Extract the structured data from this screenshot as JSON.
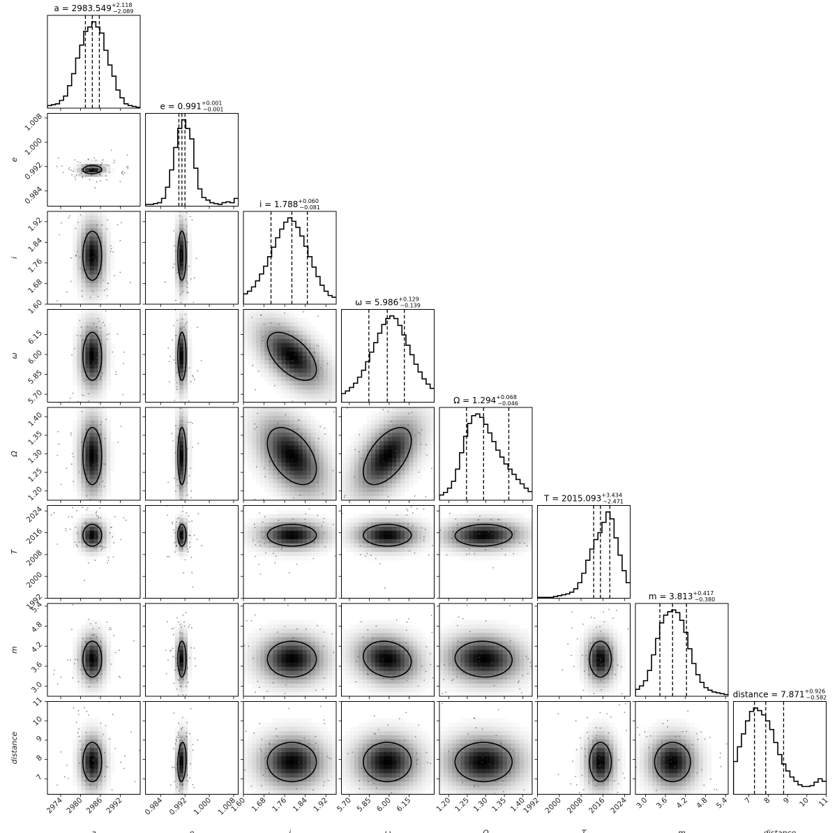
{
  "chart_data": {
    "type": "corner",
    "parameters": [
      {
        "symbol": "a",
        "axis_label": "a",
        "median": 2983.549,
        "err_plus": 2.118,
        "err_minus": 2.089,
        "title_main": "a = 2983.549",
        "title_sup": "+2.118",
        "title_sub": "−2.089",
        "range": [
          2970,
          2998
        ],
        "ticks": [
          2974,
          2980,
          2986,
          2992
        ],
        "tick_labels": [
          "2974",
          "2980",
          "2986",
          "2992"
        ],
        "quantiles": [
          2981.46,
          2983.549,
          2985.667
        ],
        "hist": [
          0.03,
          0.04,
          0.05,
          0.09,
          0.14,
          0.26,
          0.4,
          0.58,
          0.73,
          0.89,
          0.94,
          1.0,
          0.94,
          0.87,
          0.67,
          0.5,
          0.37,
          0.21,
          0.12,
          0.05,
          0.03,
          0.02,
          0.01
        ]
      },
      {
        "symbol": "e",
        "axis_label": "e",
        "median": 0.991,
        "err_plus": 0.001,
        "err_minus": 0.001,
        "title_main": "e = 0.991",
        "title_sup": "+0.001",
        "title_sub": "−0.001",
        "range": [
          0.979,
          1.0095
        ],
        "ticks": [
          0.984,
          0.992,
          1.0,
          1.008
        ],
        "tick_labels": [
          "0.984",
          "0.992",
          "1.000",
          "1.008"
        ],
        "quantiles": [
          0.99,
          0.991,
          0.992
        ],
        "hist": [
          0.02,
          0.02,
          0.03,
          0.04,
          0.09,
          0.22,
          0.42,
          0.68,
          0.9,
          1.0,
          0.9,
          0.78,
          0.44,
          0.2,
          0.1,
          0.07,
          0.04,
          0.03,
          0.02,
          0.04,
          0.05,
          0.04,
          0.09
        ]
      },
      {
        "symbol": "i",
        "axis_label": "i",
        "median": 1.788,
        "err_plus": 0.06,
        "err_minus": 0.081,
        "title_main": "i = 1.788",
        "title_sup": "+0.060",
        "title_sub": "−0.081",
        "range": [
          1.6,
          1.96
        ],
        "ticks": [
          1.6,
          1.68,
          1.76,
          1.84,
          1.92
        ],
        "tick_labels": [
          "1.60",
          "1.68",
          "1.76",
          "1.84",
          "1.92"
        ],
        "quantiles": [
          1.707,
          1.788,
          1.848
        ],
        "hist": [
          0.12,
          0.15,
          0.2,
          0.27,
          0.35,
          0.44,
          0.55,
          0.66,
          0.77,
          0.87,
          0.95,
          1.0,
          0.96,
          0.89,
          0.79,
          0.67,
          0.55,
          0.43,
          0.32,
          0.22,
          0.15,
          0.1,
          0.08
        ]
      },
      {
        "symbol": "ω",
        "axis_label": "ω",
        "median": 5.986,
        "err_plus": 0.129,
        "err_minus": 0.139,
        "title_main": "ω = 5.986",
        "title_sup": "+0.129",
        "title_sub": "−0.139",
        "range": [
          5.64,
          6.34
        ],
        "ticks": [
          5.7,
          5.85,
          6.0,
          6.15
        ],
        "tick_labels": [
          "5.70",
          "5.85",
          "6.00",
          "6.15"
        ],
        "quantiles": [
          5.847,
          5.986,
          6.115
        ],
        "hist": [
          0.1,
          0.13,
          0.17,
          0.22,
          0.29,
          0.37,
          0.47,
          0.58,
          0.69,
          0.8,
          0.9,
          0.97,
          1.0,
          0.97,
          0.89,
          0.78,
          0.66,
          0.55,
          0.44,
          0.35,
          0.27,
          0.21,
          0.16
        ]
      },
      {
        "symbol": "Ω",
        "axis_label": "Ω",
        "median": 1.294,
        "err_plus": 0.068,
        "err_minus": 0.046,
        "title_main": "Ω = 1.294",
        "title_sup": "+0.068",
        "title_sub": "−0.046",
        "range": [
          1.175,
          1.425
        ],
        "ticks": [
          1.2,
          1.25,
          1.3,
          1.35,
          1.4
        ],
        "tick_labels": [
          "1.20",
          "1.25",
          "1.30",
          "1.35",
          "1.40"
        ],
        "quantiles": [
          1.248,
          1.294,
          1.362
        ],
        "hist": [
          0.06,
          0.09,
          0.14,
          0.22,
          0.36,
          0.55,
          0.74,
          0.89,
          0.98,
          1.0,
          0.96,
          0.88,
          0.78,
          0.68,
          0.58,
          0.5,
          0.42,
          0.36,
          0.3,
          0.24,
          0.19,
          0.14,
          0.1
        ]
      },
      {
        "symbol": "T",
        "axis_label": "T",
        "median": 2015.093,
        "err_plus": 3.434,
        "err_minus": 2.471,
        "title_main": "T = 2015.093",
        "title_sup": "+3.434",
        "title_sub": "−2.471",
        "range": [
          1992,
          2026
        ],
        "ticks": [
          1992,
          2000,
          2008,
          2016,
          2024
        ],
        "tick_labels": [
          "1992",
          "2000",
          "2008",
          "2016",
          "2024"
        ],
        "quantiles": [
          2012.62,
          2015.093,
          2018.527
        ],
        "hist": [
          0.01,
          0.01,
          0.01,
          0.01,
          0.02,
          0.03,
          0.04,
          0.05,
          0.07,
          0.11,
          0.18,
          0.29,
          0.44,
          0.57,
          0.68,
          0.76,
          0.88,
          1.0,
          0.92,
          0.7,
          0.5,
          0.32,
          0.18
        ]
      },
      {
        "symbol": "m",
        "axis_label": "m",
        "median": 3.813,
        "err_plus": 0.417,
        "err_minus": 0.38,
        "title_main": "m = 3.813",
        "title_sup": "+0.417",
        "title_sub": "−0.380",
        "range": [
          2.7,
          5.48
        ],
        "ticks": [
          3.0,
          3.6,
          4.2,
          4.8,
          5.4
        ],
        "tick_labels": [
          "3.0",
          "3.6",
          "4.2",
          "4.8",
          "5.4"
        ],
        "quantiles": [
          3.433,
          3.813,
          4.23
        ],
        "hist": [
          0.08,
          0.12,
          0.18,
          0.3,
          0.48,
          0.67,
          0.85,
          0.94,
          0.98,
          1.0,
          0.97,
          0.88,
          0.74,
          0.55,
          0.38,
          0.25,
          0.16,
          0.1,
          0.07,
          0.05,
          0.04,
          0.03,
          0.02
        ]
      },
      {
        "symbol": "distance",
        "axis_label": "distance",
        "median": 7.871,
        "err_plus": 0.926,
        "err_minus": 0.582,
        "title_main": "distance = 7.871",
        "title_sup": "+0.926",
        "title_sub": "−0.582",
        "range": [
          6.2,
          11.0
        ],
        "ticks": [
          7,
          8,
          9,
          10,
          11
        ],
        "tick_labels": [
          "7",
          "8",
          "9",
          "10",
          "11"
        ],
        "quantiles": [
          7.289,
          7.871,
          8.797
        ],
        "hist": [
          0.38,
          0.55,
          0.7,
          0.85,
          0.96,
          1.0,
          0.97,
          0.92,
          0.85,
          0.75,
          0.6,
          0.46,
          0.35,
          0.27,
          0.2,
          0.15,
          0.11,
          0.09,
          0.09,
          0.1,
          0.14,
          0.18,
          0.15
        ]
      }
    ],
    "correlations": [
      {
        "i": 1,
        "j": 0,
        "r": 0.05
      },
      {
        "i": 2,
        "j": 0,
        "r": 0.0
      },
      {
        "i": 2,
        "j": 1,
        "r": 0.0
      },
      {
        "i": 3,
        "j": 0,
        "r": 0.0
      },
      {
        "i": 3,
        "j": 1,
        "r": 0.0
      },
      {
        "i": 3,
        "j": 2,
        "r": -0.55
      },
      {
        "i": 4,
        "j": 0,
        "r": 0.0
      },
      {
        "i": 4,
        "j": 1,
        "r": 0.0
      },
      {
        "i": 4,
        "j": 2,
        "r": -0.45
      },
      {
        "i": 4,
        "j": 3,
        "r": 0.55
      },
      {
        "i": 5,
        "j": 0,
        "r": 0.0
      },
      {
        "i": 5,
        "j": 1,
        "r": 0.0
      },
      {
        "i": 5,
        "j": 2,
        "r": 0.0
      },
      {
        "i": 5,
        "j": 3,
        "r": 0.0
      },
      {
        "i": 5,
        "j": 4,
        "r": 0.05
      },
      {
        "i": 6,
        "j": 0,
        "r": 0.0
      },
      {
        "i": 6,
        "j": 1,
        "r": 0.0
      },
      {
        "i": 6,
        "j": 2,
        "r": 0.0
      },
      {
        "i": 6,
        "j": 3,
        "r": -0.15
      },
      {
        "i": 6,
        "j": 4,
        "r": -0.05
      },
      {
        "i": 6,
        "j": 5,
        "r": 0.0
      },
      {
        "i": 7,
        "j": 0,
        "r": 0.0
      },
      {
        "i": 7,
        "j": 1,
        "r": 0.15
      },
      {
        "i": 7,
        "j": 2,
        "r": 0.0
      },
      {
        "i": 7,
        "j": 3,
        "r": 0.0
      },
      {
        "i": 7,
        "j": 4,
        "r": 0.0
      },
      {
        "i": 7,
        "j": 5,
        "r": 0.0
      },
      {
        "i": 7,
        "j": 6,
        "r": 0.0
      }
    ]
  }
}
